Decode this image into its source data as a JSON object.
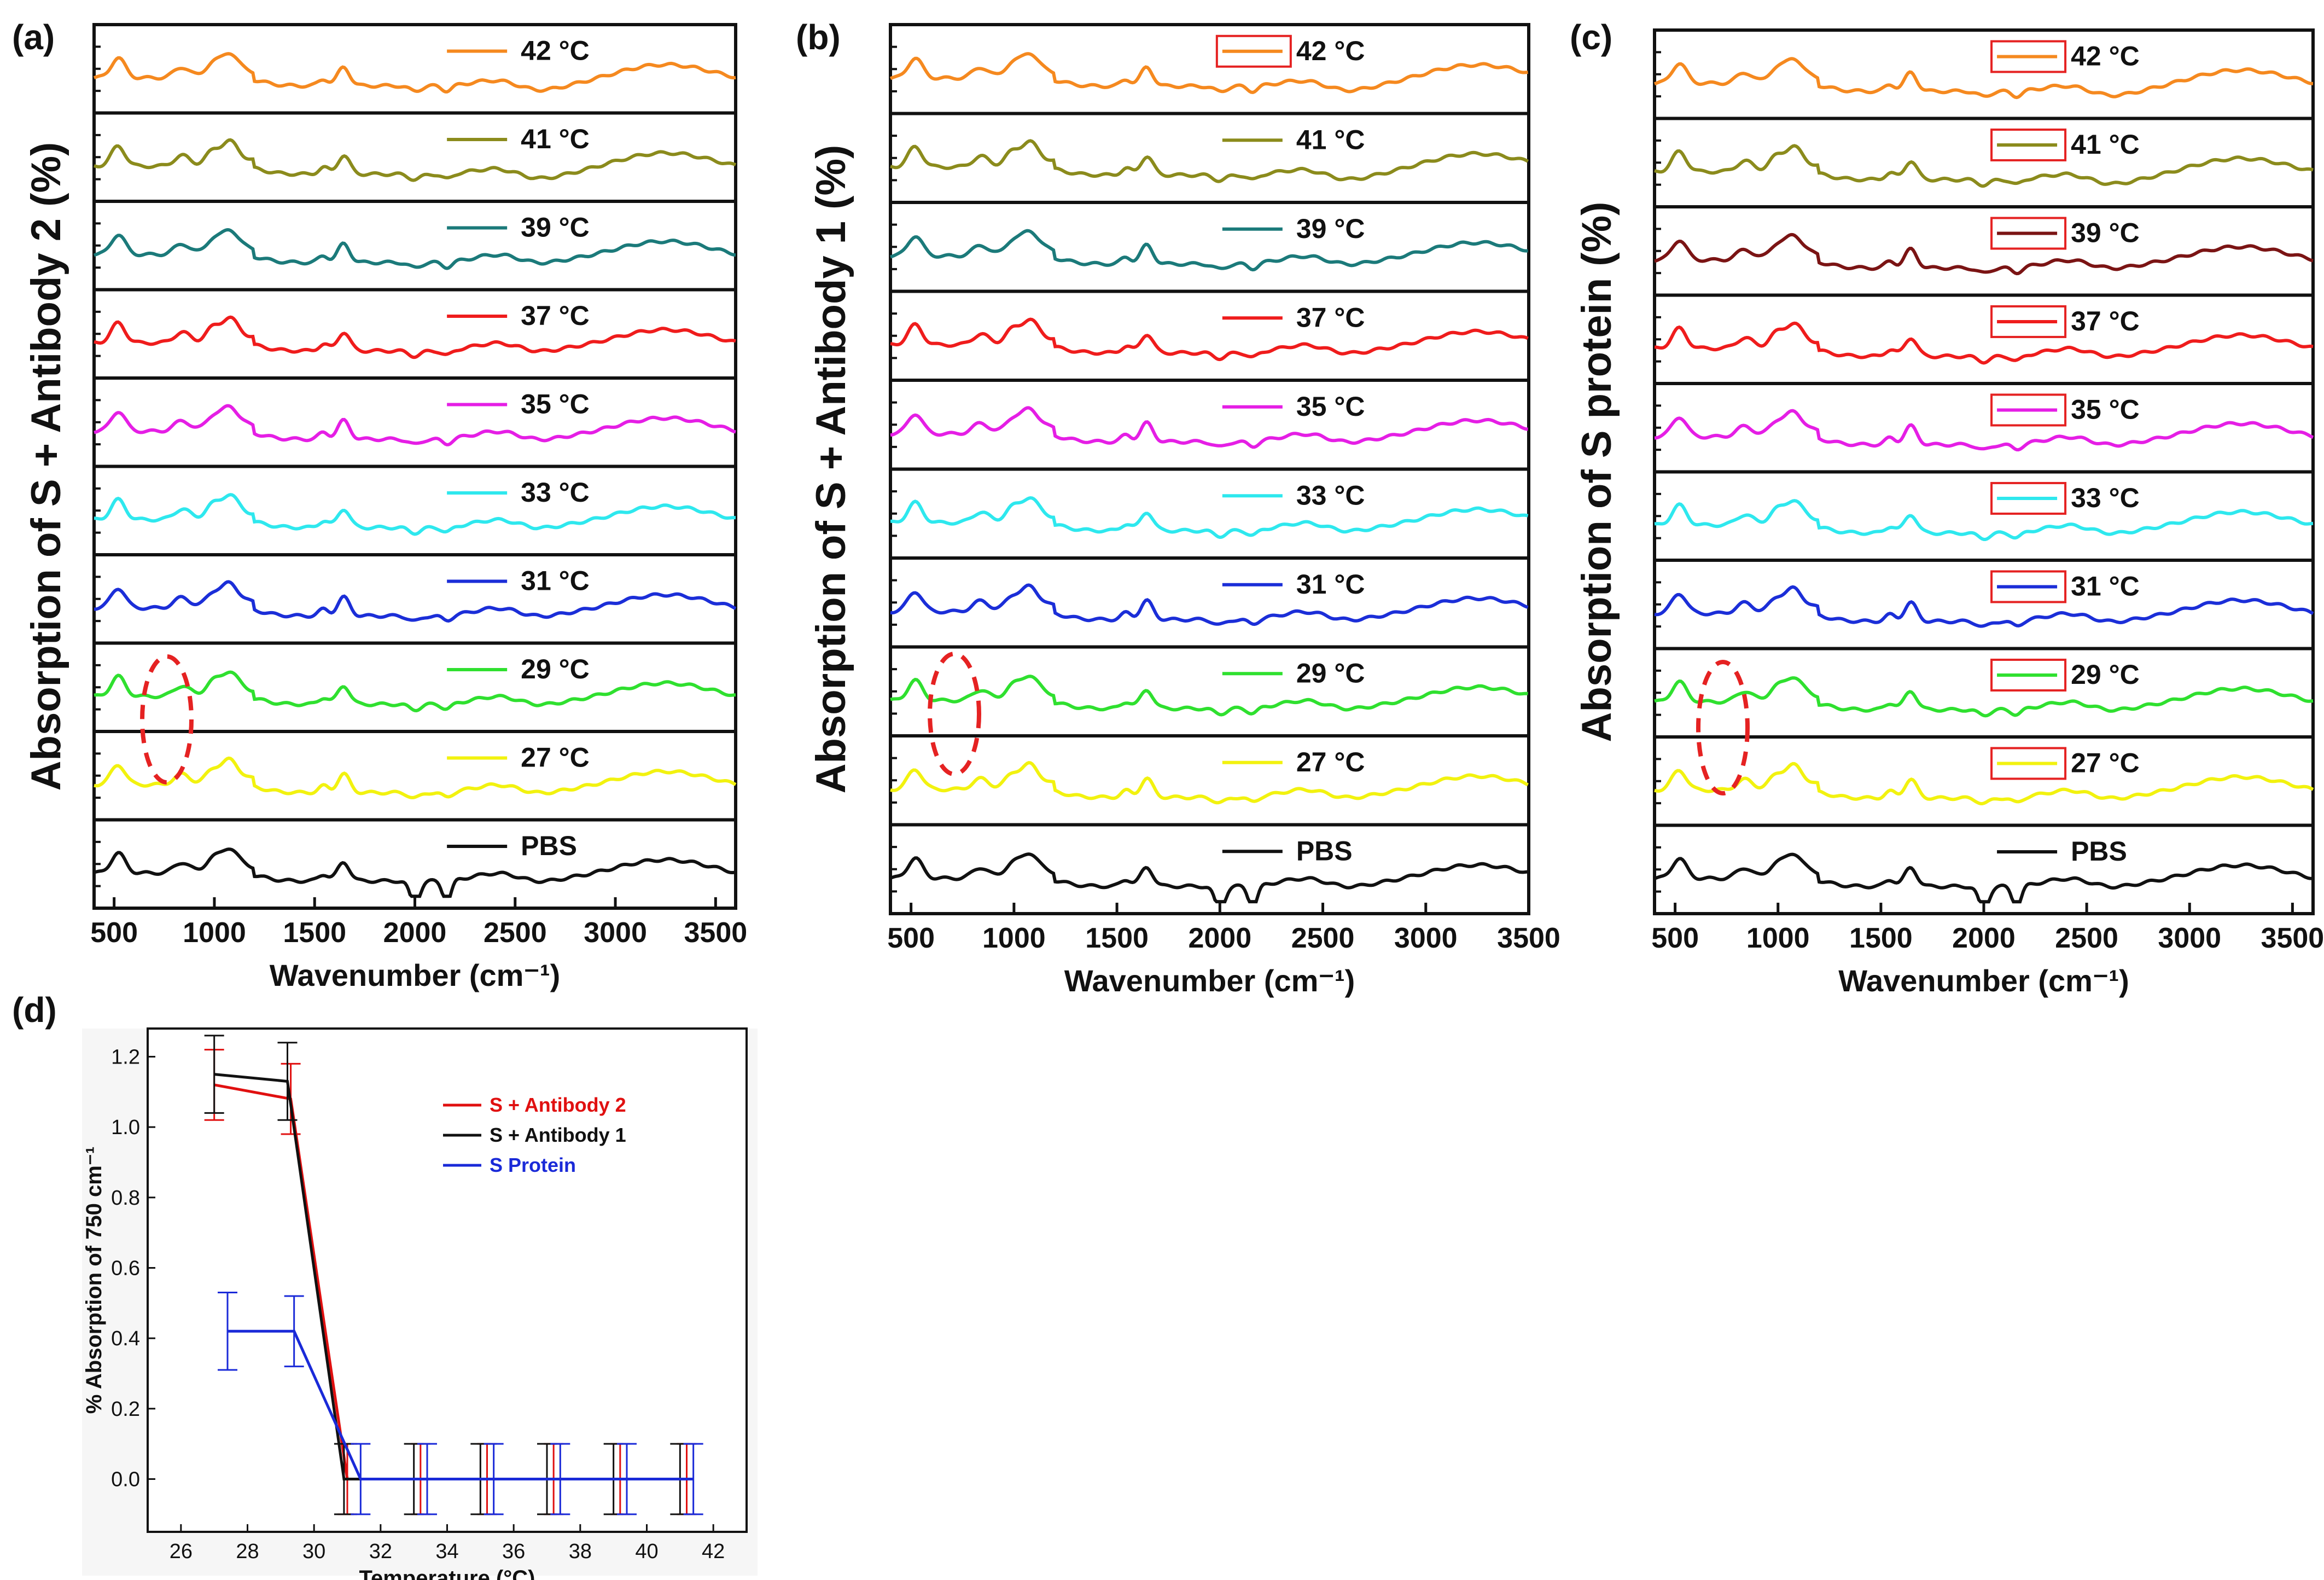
{
  "figure": {
    "panel_labels": [
      "(a)",
      "(b)",
      "(c)",
      "(d)"
    ]
  },
  "colors": {
    "42": "#f5891f",
    "41": "#8b8b1c",
    "39": "#1b7a7a",
    "39c": "#7b1414",
    "37": "#ef1c1c",
    "35": "#e51ee5",
    "33": "#2ee8ee",
    "31": "#1b2ed8",
    "29": "#2fe02f",
    "27": "#f2f20f",
    "PBS": "#111111",
    "box": "#e52222",
    "ellipse": "#e52222",
    "d_red": "#e01010",
    "d_black": "#111111",
    "d_blue": "#1a2ad8"
  },
  "chart_data": [
    {
      "type": "line",
      "panel": "(a)",
      "ylabel": "Absorption of S + Antibody 2 (%)",
      "xlabel": "Wavenumber (cm⁻¹)",
      "xlim": [
        400,
        3600
      ],
      "xticks": [
        500,
        1000,
        1500,
        2000,
        2500,
        3000,
        3500
      ],
      "stack_order": [
        "42 °C",
        "41 °C",
        "39 °C",
        "37 °C",
        "35 °C",
        "33 °C",
        "31 °C",
        "29 °C",
        "27 °C",
        "PBS"
      ],
      "series": [
        {
          "name": "42 °C",
          "color_key": "42"
        },
        {
          "name": "41 °C",
          "color_key": "41"
        },
        {
          "name": "39 °C",
          "color_key": "39"
        },
        {
          "name": "37 °C",
          "color_key": "37"
        },
        {
          "name": "35 °C",
          "color_key": "35"
        },
        {
          "name": "33 °C",
          "color_key": "33"
        },
        {
          "name": "31 °C",
          "color_key": "31"
        },
        {
          "name": "29 °C",
          "color_key": "29"
        },
        {
          "name": "27 °C",
          "color_key": "27"
        },
        {
          "name": "PBS",
          "color_key": "PBS"
        }
      ],
      "annotation": "dashed ellipse near 750 cm-1 on 29/27 °C traces"
    },
    {
      "type": "line",
      "panel": "(b)",
      "ylabel": "Absorption of S + Antibody 1 (%)",
      "xlabel": "Wavenumber (cm⁻¹)",
      "xlim": [
        400,
        3500
      ],
      "xticks": [
        500,
        1000,
        1500,
        2000,
        2500,
        3000,
        3500
      ],
      "series": [
        {
          "name": "42 °C",
          "color_key": "42"
        },
        {
          "name": "41 °C",
          "color_key": "41"
        },
        {
          "name": "39 °C",
          "color_key": "39"
        },
        {
          "name": "37 °C",
          "color_key": "37"
        },
        {
          "name": "35 °C",
          "color_key": "35"
        },
        {
          "name": "33 °C",
          "color_key": "33"
        },
        {
          "name": "31 °C",
          "color_key": "31"
        },
        {
          "name": "29 °C",
          "color_key": "29"
        },
        {
          "name": "27 °C",
          "color_key": "27"
        },
        {
          "name": "PBS",
          "color_key": "PBS"
        }
      ]
    },
    {
      "type": "line",
      "panel": "(c)",
      "ylabel": "Absorption of S protein (%)",
      "xlabel": "Wavenumber (cm⁻¹)",
      "xlim": [
        400,
        3600
      ],
      "xticks": [
        500,
        1000,
        1500,
        2000,
        2500,
        3000,
        3500
      ],
      "series": [
        {
          "name": "42 °C",
          "color_key": "42"
        },
        {
          "name": "41 °C",
          "color_key": "41"
        },
        {
          "name": "39 °C",
          "color_key": "39c"
        },
        {
          "name": "37 °C",
          "color_key": "37"
        },
        {
          "name": "35 °C",
          "color_key": "35"
        },
        {
          "name": "33 °C",
          "color_key": "33"
        },
        {
          "name": "31 °C",
          "color_key": "31"
        },
        {
          "name": "29 °C",
          "color_key": "29"
        },
        {
          "name": "27 °C",
          "color_key": "27"
        },
        {
          "name": "PBS",
          "color_key": "PBS"
        }
      ]
    },
    {
      "type": "line",
      "panel": "(d)",
      "xlabel": "Temperature (°C)",
      "ylabel": "% Absorption of 750 cm⁻¹",
      "xlim": [
        25,
        43
      ],
      "ylim": [
        -0.15,
        1.28
      ],
      "xticks": [
        26,
        28,
        30,
        32,
        34,
        36,
        38,
        40,
        42
      ],
      "yticks": [
        0.0,
        0.2,
        0.4,
        0.6,
        0.8,
        1.0,
        1.2
      ],
      "legend_position": "top-right",
      "series": [
        {
          "name": "S + Antibody 2",
          "color_key": "d_red",
          "x": [
            27,
            29.3,
            31,
            33.2,
            35.2,
            37.2,
            39.2,
            41.2
          ],
          "y": [
            1.12,
            1.08,
            0,
            0,
            0,
            0,
            0,
            0
          ],
          "yerr": [
            0.1,
            0.1,
            0.1,
            0.1,
            0.1,
            0.1,
            0.1,
            0.1
          ]
        },
        {
          "name": "S + Antibody 1",
          "color_key": "d_black",
          "x": [
            27,
            29.2,
            30.9,
            33,
            35,
            37,
            39,
            41
          ],
          "y": [
            1.15,
            1.13,
            0,
            0,
            0,
            0,
            0,
            0
          ],
          "yerr": [
            0.11,
            0.11,
            0.1,
            0.1,
            0.1,
            0.1,
            0.1,
            0.1
          ]
        },
        {
          "name": "S Protein",
          "color_key": "d_blue",
          "x": [
            27.4,
            29.4,
            31.4,
            33.4,
            35.4,
            37.4,
            39.4,
            41.4
          ],
          "y": [
            0.42,
            0.42,
            0,
            0,
            0,
            0,
            0,
            0
          ],
          "yerr": [
            0.11,
            0.1,
            0.1,
            0.1,
            0.1,
            0.1,
            0.1,
            0.1
          ]
        }
      ]
    }
  ]
}
